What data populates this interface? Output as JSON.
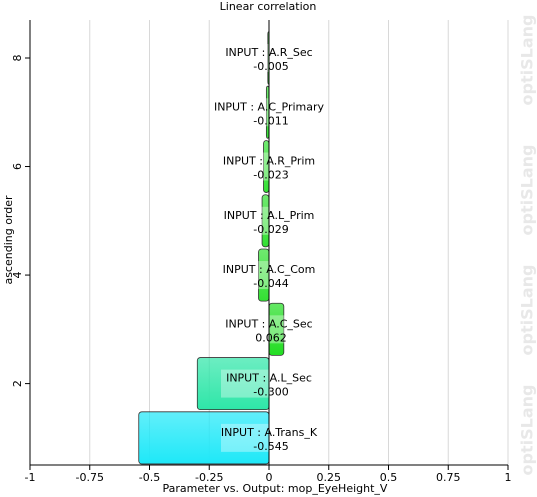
{
  "chart_data": {
    "type": "hbar",
    "title": "Linear correlation",
    "xlabel": "Parameter vs. Output: mop_EyeHeight_V",
    "ylabel": "ascending order",
    "watermark": "optiSLang",
    "categories": [
      "INPUT : A.Trans_K",
      "INPUT : A.L_Sec",
      "INPUT : A.C_Sec",
      "INPUT : A.C_Com",
      "INPUT : A.L_Prim",
      "INPUT : A.R_Prim",
      "INPUT : A.C_Primary",
      "INPUT : A.R_Sec"
    ],
    "values": [
      -0.545,
      -0.3,
      0.062,
      -0.044,
      -0.029,
      -0.023,
      -0.011,
      -0.005
    ],
    "value_labels": [
      "-0.545",
      "-0.300",
      "0.062",
      "-0.044",
      "-0.029",
      "-0.023",
      "-0.011",
      "-0.005"
    ],
    "colors": [
      "#1ee8f8",
      "#2ee6a8",
      "#22dd22",
      "#33e033",
      "#33e033",
      "#33e033",
      "#33e033",
      "#33e033"
    ],
    "positions": [
      1,
      2,
      3,
      4,
      5,
      6,
      7,
      8
    ],
    "xlim": [
      -1,
      1
    ],
    "xticks": [
      -1,
      -0.75,
      -0.5,
      -0.25,
      0,
      0.25,
      0.5,
      0.75,
      1
    ],
    "ylim": [
      0.5,
      8.7
    ],
    "yticks": [
      2,
      4,
      6,
      8
    ],
    "grid": true
  }
}
